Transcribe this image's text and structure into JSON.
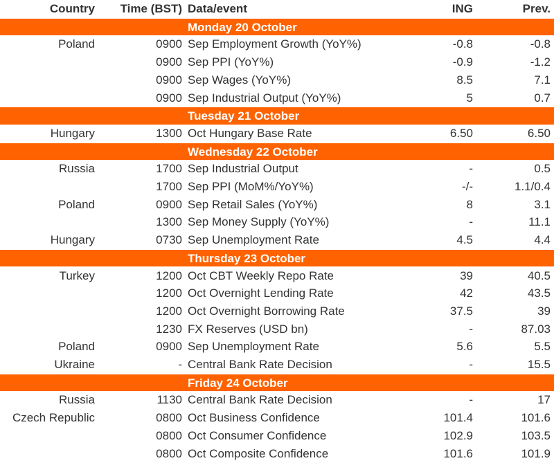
{
  "header": {
    "country": "Country",
    "time": "Time (BST)",
    "event": "Data/event",
    "ing": "ING",
    "prev": "Prev."
  },
  "sections": [
    {
      "day": "Monday 20 October",
      "rows": [
        [
          "Poland",
          "0900",
          "Sep Employment Growth (YoY%)",
          "-0.8",
          "-0.8"
        ],
        [
          null,
          "0900",
          "Sep PPI (YoY%)",
          "-0.9",
          "-1.2"
        ],
        [
          null,
          "0900",
          "Sep Wages (YoY%)",
          "8.5",
          "7.1"
        ],
        [
          null,
          "0900",
          "Sep Industrial Output (YoY%)",
          "5",
          "0.7"
        ]
      ]
    },
    {
      "day": "Tuesday 21 October",
      "rows": [
        [
          "Hungary",
          "1300",
          "Oct Hungary Base Rate",
          "6.50",
          "6.50"
        ]
      ]
    },
    {
      "day": "Wednesday 22 October",
      "rows": [
        [
          "Russia",
          "1700",
          "Sep Industrial Output",
          "-",
          "0.5"
        ],
        [
          null,
          "1700",
          "Sep PPI (MoM%/YoY%)",
          "-/-",
          "1.1/0.4"
        ],
        [
          "Poland",
          "0900",
          "Sep Retail Sales (YoY%)",
          "8",
          "3.1"
        ],
        [
          null,
          "1300",
          "Sep Money Supply (YoY%)",
          "-",
          "11.1"
        ],
        [
          "Hungary",
          "0730",
          "Sep Unemployment Rate",
          "4.5",
          "4.4"
        ]
      ]
    },
    {
      "day": "Thursday 23 October",
      "rows": [
        [
          "Turkey",
          "1200",
          "Oct CBT Weekly Repo Rate",
          "39",
          "40.5"
        ],
        [
          null,
          "1200",
          "Oct Overnight Lending Rate",
          "42",
          "43.5"
        ],
        [
          null,
          "1200",
          "Oct Overnight Borrowing Rate",
          "37.5",
          "39"
        ],
        [
          null,
          "1230",
          "FX Reserves (USD bn)",
          "-",
          "87.03"
        ],
        [
          "Poland",
          "0900",
          "Sep Unemployment Rate",
          "5.6",
          "5.5"
        ],
        [
          "Ukraine",
          "-",
          "Central Bank Rate Decision",
          "-",
          "15.5"
        ]
      ]
    },
    {
      "day": "Friday 24 October",
      "rows": [
        [
          "Russia",
          "1130",
          "Central Bank Rate Decision",
          "-",
          "17"
        ],
        [
          "Czech Republic",
          "0800",
          "Oct Business Confidence",
          "101.4",
          "101.6"
        ],
        [
          null,
          "0800",
          "Oct Consumer Confidence",
          "102.9",
          "103.5"
        ],
        [
          null,
          "0800",
          "Oct Composite Confidence",
          "101.6",
          "101.9"
        ]
      ]
    }
  ]
}
